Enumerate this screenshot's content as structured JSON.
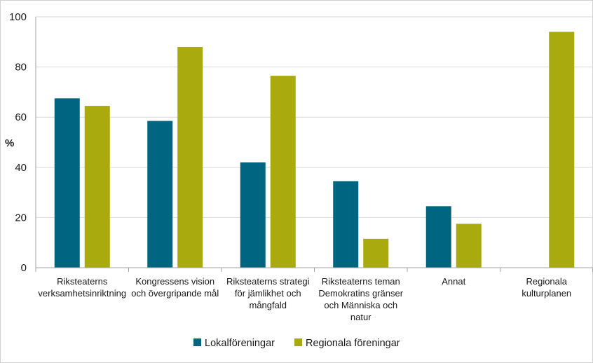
{
  "chart_data": {
    "type": "bar",
    "ylabel": "%",
    "ylim": [
      0,
      100
    ],
    "yticks": [
      0,
      20,
      40,
      60,
      80,
      100
    ],
    "grid": true,
    "legend_position": "bottom",
    "categories": [
      [
        "Riksteaterns",
        "verksamhetsinriktning"
      ],
      [
        "Kongressens vision",
        "och övergripande mål"
      ],
      [
        "Riksteaterns strategi",
        "för jämlikhet och",
        "mångfald"
      ],
      [
        "Riksteaterns teman",
        "Demokratins gränser",
        "och Människa och",
        "natur"
      ],
      [
        "Annat"
      ],
      [
        "Regionala",
        "kulturplanen"
      ]
    ],
    "series": [
      {
        "name": "Lokalföreningar",
        "color": "#006580",
        "values": [
          67.5,
          58.5,
          42,
          34.5,
          24.5,
          null
        ]
      },
      {
        "name": "Regionala föreningar",
        "color": "#a8aa0e",
        "values": [
          64.5,
          88,
          76.5,
          11.5,
          17.5,
          94
        ]
      }
    ]
  }
}
